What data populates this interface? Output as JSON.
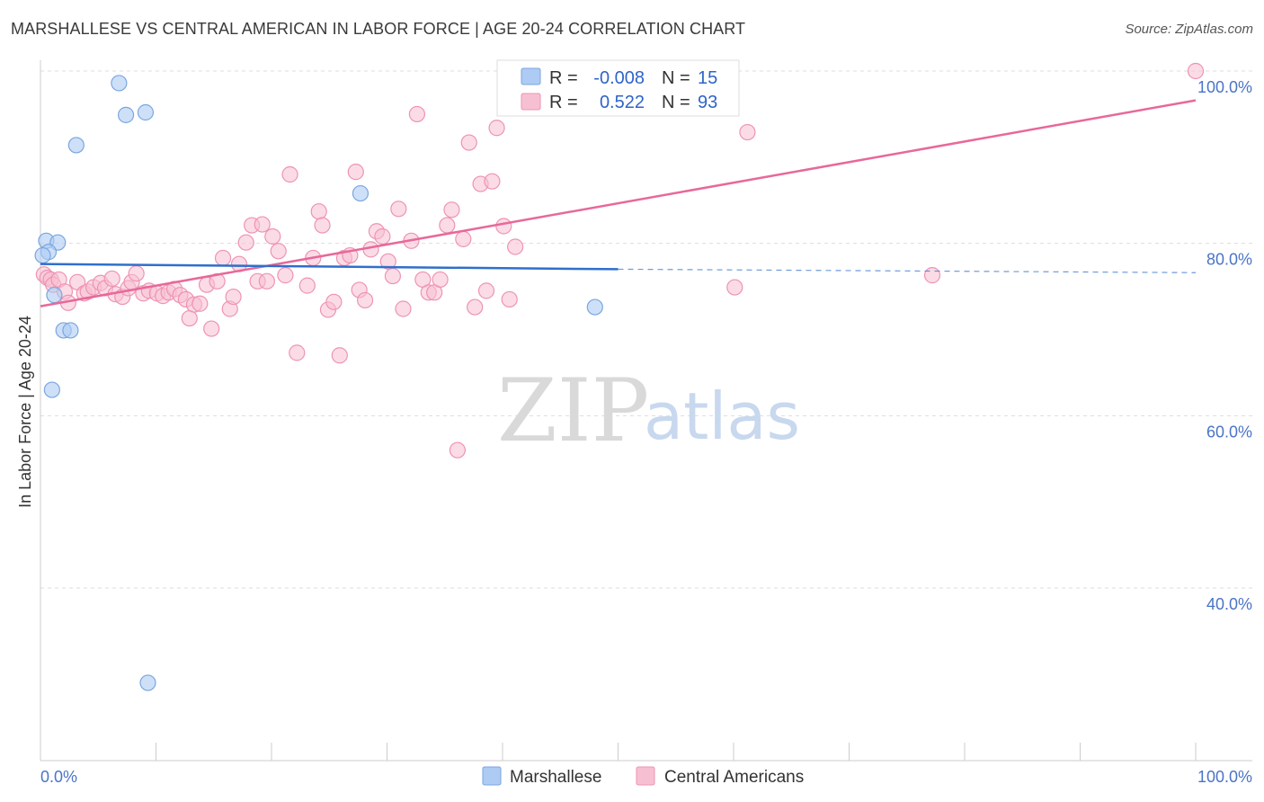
{
  "header": {
    "title": "MARSHALLESE VS CENTRAL AMERICAN IN LABOR FORCE | AGE 20-24 CORRELATION CHART",
    "source": "Source: ZipAtlas.com"
  },
  "watermark": {
    "zip": "ZIP",
    "atlas": "atlas"
  },
  "colors": {
    "marshallese_fill": "#aecbf3",
    "marshallese_stroke": "#7aa6e0",
    "marshallese_line": "#2f6fcc",
    "central_fill": "#f7c0d2",
    "central_stroke": "#ee93b2",
    "central_line": "#e8689a",
    "tick_label": "#4a74c8",
    "grid": "#dddddd"
  },
  "legend": {
    "rows": [
      {
        "r_label": "R =",
        "r_value": "-0.008",
        "n_label": "N =",
        "n_value": "15"
      },
      {
        "r_label": "R =",
        "r_value": "0.522",
        "n_label": "N =",
        "n_value": "93"
      }
    ]
  },
  "bottom_legend": [
    "Marshallese",
    "Central Americans"
  ],
  "chart_data": {
    "type": "scatter",
    "xlabel": "",
    "ylabel": "In Labor Force | Age 20-24",
    "xlim": [
      0,
      100
    ],
    "ylim": [
      20,
      100
    ],
    "x_tick_labels": [
      "0.0%",
      "100.0%"
    ],
    "y_ticks": [
      40,
      60,
      80,
      100
    ],
    "y_tick_labels": [
      "40.0%",
      "60.0%",
      "80.0%",
      "100.0%"
    ],
    "grid": true,
    "series": [
      {
        "name": "Marshallese",
        "r": -0.008,
        "n": 15,
        "points": [
          [
            0.5,
            80.3
          ],
          [
            1.5,
            80.1
          ],
          [
            0.7,
            79.0
          ],
          [
            0.2,
            78.6
          ],
          [
            1.2,
            74.0
          ],
          [
            2.0,
            69.9
          ],
          [
            2.6,
            69.9
          ],
          [
            1.0,
            63.0
          ],
          [
            3.1,
            91.4
          ],
          [
            6.8,
            98.6
          ],
          [
            7.4,
            94.9
          ],
          [
            9.1,
            95.2
          ],
          [
            27.7,
            85.8
          ],
          [
            48.0,
            72.6
          ],
          [
            9.3,
            29.0
          ]
        ],
        "trend": {
          "x": [
            0,
            50
          ],
          "y": [
            77.6,
            77.0
          ],
          "dashed_to": [
            100,
            76.6
          ]
        }
      },
      {
        "name": "Central Americans",
        "r": 0.522,
        "n": 93,
        "points": [
          [
            0.3,
            76.4
          ],
          [
            0.6,
            76.0
          ],
          [
            0.9,
            75.8
          ],
          [
            1.1,
            75.2
          ],
          [
            1.6,
            75.8
          ],
          [
            2.1,
            74.4
          ],
          [
            2.4,
            73.1
          ],
          [
            3.2,
            75.5
          ],
          [
            3.8,
            74.2
          ],
          [
            4.1,
            74.4
          ],
          [
            4.6,
            74.9
          ],
          [
            5.2,
            75.4
          ],
          [
            5.6,
            74.8
          ],
          [
            6.2,
            75.9
          ],
          [
            6.5,
            74.1
          ],
          [
            7.1,
            73.8
          ],
          [
            7.6,
            74.8
          ],
          [
            7.9,
            75.5
          ],
          [
            8.3,
            76.5
          ],
          [
            8.9,
            74.2
          ],
          [
            9.4,
            74.5
          ],
          [
            10.1,
            74.2
          ],
          [
            10.6,
            73.9
          ],
          [
            11.1,
            74.3
          ],
          [
            11.6,
            74.7
          ],
          [
            12.1,
            74.0
          ],
          [
            12.6,
            73.5
          ],
          [
            12.9,
            71.3
          ],
          [
            13.3,
            72.9
          ],
          [
            13.8,
            73.0
          ],
          [
            14.4,
            75.2
          ],
          [
            14.8,
            70.1
          ],
          [
            15.3,
            75.6
          ],
          [
            15.8,
            78.3
          ],
          [
            16.4,
            72.4
          ],
          [
            16.7,
            73.8
          ],
          [
            17.2,
            77.6
          ],
          [
            17.8,
            80.1
          ],
          [
            18.3,
            82.1
          ],
          [
            18.8,
            75.6
          ],
          [
            19.2,
            82.2
          ],
          [
            19.6,
            75.6
          ],
          [
            20.1,
            80.8
          ],
          [
            20.6,
            79.1
          ],
          [
            21.2,
            76.3
          ],
          [
            21.6,
            88.0
          ],
          [
            22.2,
            67.3
          ],
          [
            23.1,
            75.1
          ],
          [
            23.6,
            78.3
          ],
          [
            24.1,
            83.7
          ],
          [
            24.4,
            82.1
          ],
          [
            24.9,
            72.3
          ],
          [
            25.4,
            73.2
          ],
          [
            25.9,
            67.0
          ],
          [
            26.3,
            78.3
          ],
          [
            26.8,
            78.6
          ],
          [
            27.3,
            88.3
          ],
          [
            27.6,
            74.6
          ],
          [
            28.1,
            73.4
          ],
          [
            28.6,
            79.3
          ],
          [
            29.1,
            81.4
          ],
          [
            29.6,
            80.8
          ],
          [
            30.1,
            77.9
          ],
          [
            30.5,
            76.2
          ],
          [
            31.0,
            84.0
          ],
          [
            31.4,
            72.4
          ],
          [
            32.1,
            80.3
          ],
          [
            32.6,
            95.0
          ],
          [
            33.1,
            75.8
          ],
          [
            33.6,
            74.3
          ],
          [
            34.1,
            74.3
          ],
          [
            34.6,
            75.8
          ],
          [
            35.2,
            82.1
          ],
          [
            35.6,
            83.9
          ],
          [
            36.1,
            56.0
          ],
          [
            36.6,
            80.5
          ],
          [
            37.1,
            91.7
          ],
          [
            37.6,
            72.6
          ],
          [
            38.1,
            86.9
          ],
          [
            38.6,
            74.5
          ],
          [
            39.1,
            87.2
          ],
          [
            39.5,
            93.4
          ],
          [
            40.1,
            82.0
          ],
          [
            40.6,
            73.5
          ],
          [
            41.1,
            79.6
          ],
          [
            43.8,
            96.9
          ],
          [
            45.1,
            99.8
          ],
          [
            50.1,
            96.1
          ],
          [
            56.6,
            99.9
          ],
          [
            60.1,
            74.9
          ],
          [
            61.2,
            92.9
          ],
          [
            77.2,
            76.3
          ],
          [
            100.0,
            100.0
          ]
        ],
        "trend": {
          "x": [
            0,
            100
          ],
          "y": [
            72.7,
            96.6
          ]
        }
      }
    ]
  }
}
